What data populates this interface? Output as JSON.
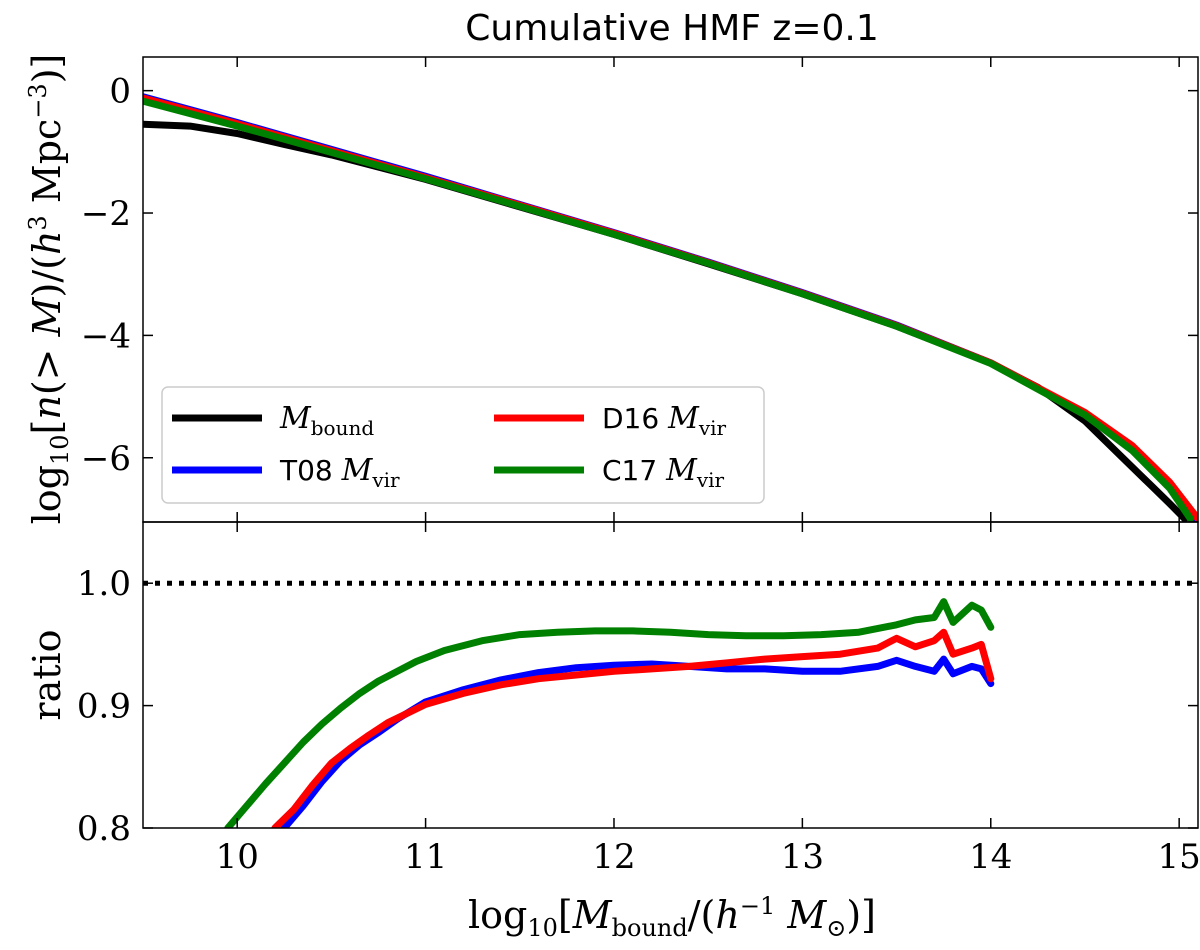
{
  "chart_data": {
    "type": "line",
    "title": "Cumulative HMF z=0.1",
    "xlabel": "log10[Mbound/(h^-1 M⊙)]",
    "xlim": [
      9.5,
      15.1
    ],
    "x_ticks": [
      "10",
      "11",
      "12",
      "13",
      "14",
      "15"
    ],
    "x_tick_values": [
      10,
      11,
      12,
      13,
      14,
      15
    ],
    "panels": [
      {
        "name": "hmf",
        "ylabel": "log10[n(>M)/(h^3 Mpc^-3)]",
        "ylim": [
          -7.05,
          0.55
        ],
        "y_ticks": [
          "0",
          "−2",
          "−4",
          "−6"
        ],
        "y_tick_values": [
          0,
          -2,
          -4,
          -6
        ],
        "legend_position": "lower-left",
        "series": [
          {
            "name": "Mbound",
            "color": "#000000",
            "x": [
              9.5,
              9.75,
              10.0,
              10.25,
              10.5,
              11.0,
              11.5,
              12.0,
              12.5,
              13.0,
              13.5,
              14.0,
              14.25,
              14.5,
              14.7,
              14.85,
              14.95,
              15.03
            ],
            "y": [
              -0.55,
              -0.58,
              -0.7,
              -0.88,
              -1.05,
              -1.45,
              -1.9,
              -2.35,
              -2.83,
              -3.32,
              -3.85,
              -4.45,
              -4.85,
              -5.4,
              -6.0,
              -6.45,
              -6.75,
              -7.0
            ]
          },
          {
            "name": "T08 Mvir",
            "color": "#0000ff",
            "x": [
              9.5,
              10.0,
              10.5,
              11.0,
              11.5,
              12.0,
              12.5,
              13.0,
              13.5,
              14.0,
              14.5,
              14.75,
              14.95,
              15.08
            ],
            "y": [
              -0.1,
              -0.52,
              -0.96,
              -1.4,
              -1.86,
              -2.32,
              -2.8,
              -3.3,
              -3.83,
              -4.45,
              -5.28,
              -5.85,
              -6.45,
              -7.0
            ]
          },
          {
            "name": "D16 Mvir",
            "color": "#ff0000",
            "x": [
              9.5,
              10.0,
              10.5,
              11.0,
              11.5,
              12.0,
              12.5,
              13.0,
              13.5,
              14.0,
              14.5,
              14.75,
              14.95,
              15.1
            ],
            "y": [
              -0.12,
              -0.54,
              -0.98,
              -1.42,
              -1.87,
              -2.33,
              -2.81,
              -3.31,
              -3.84,
              -4.45,
              -5.26,
              -5.8,
              -6.4,
              -7.0
            ]
          },
          {
            "name": "C17 Mvir",
            "color": "#008000",
            "x": [
              9.5,
              10.0,
              10.5,
              11.0,
              11.5,
              12.0,
              12.5,
              13.0,
              13.5,
              14.0,
              14.5,
              14.75,
              14.95,
              15.06
            ],
            "y": [
              -0.17,
              -0.58,
              -1.01,
              -1.44,
              -1.89,
              -2.35,
              -2.82,
              -3.32,
              -3.85,
              -4.46,
              -5.3,
              -5.88,
              -6.5,
              -7.0
            ]
          }
        ]
      },
      {
        "name": "ratio",
        "ylabel": "ratio",
        "ylim": [
          0.8,
          1.05
        ],
        "y_ticks": [
          "0.8",
          "0.9",
          "1.0"
        ],
        "y_tick_values": [
          0.8,
          0.9,
          1.0
        ],
        "reference_line": {
          "y": 1.0,
          "style": "dotted",
          "color": "#000000"
        },
        "series": [
          {
            "name": "T08 Mvir",
            "color": "#0000ff",
            "x": [
              10.25,
              10.35,
              10.45,
              10.55,
              10.65,
              10.75,
              10.85,
              11.0,
              11.2,
              11.4,
              11.6,
              11.8,
              12.0,
              12.2,
              12.4,
              12.6,
              12.8,
              13.0,
              13.2,
              13.4,
              13.5,
              13.6,
              13.7,
              13.75,
              13.8,
              13.9,
              13.95,
              14.0
            ],
            "y": [
              0.8,
              0.818,
              0.838,
              0.855,
              0.868,
              0.878,
              0.889,
              0.903,
              0.913,
              0.921,
              0.927,
              0.931,
              0.933,
              0.934,
              0.932,
              0.93,
              0.93,
              0.928,
              0.928,
              0.932,
              0.937,
              0.932,
              0.928,
              0.938,
              0.926,
              0.932,
              0.93,
              0.918
            ]
          },
          {
            "name": "D16 Mvir",
            "color": "#ff0000",
            "x": [
              10.2,
              10.3,
              10.4,
              10.5,
              10.6,
              10.7,
              10.8,
              11.0,
              11.2,
              11.4,
              11.6,
              11.8,
              12.0,
              12.2,
              12.4,
              12.6,
              12.8,
              13.0,
              13.2,
              13.4,
              13.5,
              13.6,
              13.7,
              13.75,
              13.8,
              13.9,
              13.95,
              14.0
            ],
            "y": [
              0.8,
              0.815,
              0.835,
              0.853,
              0.865,
              0.876,
              0.886,
              0.901,
              0.91,
              0.917,
              0.922,
              0.925,
              0.928,
              0.93,
              0.932,
              0.935,
              0.938,
              0.94,
              0.942,
              0.947,
              0.955,
              0.948,
              0.953,
              0.96,
              0.942,
              0.947,
              0.95,
              0.922
            ]
          },
          {
            "name": "C17 Mvir",
            "color": "#008000",
            "x": [
              9.95,
              10.05,
              10.15,
              10.25,
              10.35,
              10.45,
              10.55,
              10.65,
              10.75,
              10.85,
              10.95,
              11.1,
              11.3,
              11.5,
              11.7,
              11.9,
              12.1,
              12.3,
              12.5,
              12.7,
              12.9,
              13.1,
              13.3,
              13.5,
              13.6,
              13.7,
              13.75,
              13.8,
              13.9,
              13.95,
              14.0
            ],
            "y": [
              0.8,
              0.818,
              0.836,
              0.853,
              0.87,
              0.885,
              0.898,
              0.91,
              0.92,
              0.928,
              0.936,
              0.945,
              0.953,
              0.958,
              0.96,
              0.961,
              0.961,
              0.96,
              0.958,
              0.957,
              0.957,
              0.958,
              0.96,
              0.966,
              0.97,
              0.972,
              0.985,
              0.968,
              0.982,
              0.978,
              0.964
            ]
          }
        ]
      }
    ]
  },
  "legend": {
    "entries": [
      {
        "prefix": "",
        "symbol": "M",
        "sub": "bound",
        "color": "#000000"
      },
      {
        "prefix": "D16 ",
        "symbol": "M",
        "sub": "vir",
        "color": "#ff0000"
      },
      {
        "prefix": "T08 ",
        "symbol": "M",
        "sub": "vir",
        "color": "#0000ff"
      },
      {
        "prefix": "C17 ",
        "symbol": "M",
        "sub": "vir",
        "color": "#008000"
      }
    ]
  }
}
